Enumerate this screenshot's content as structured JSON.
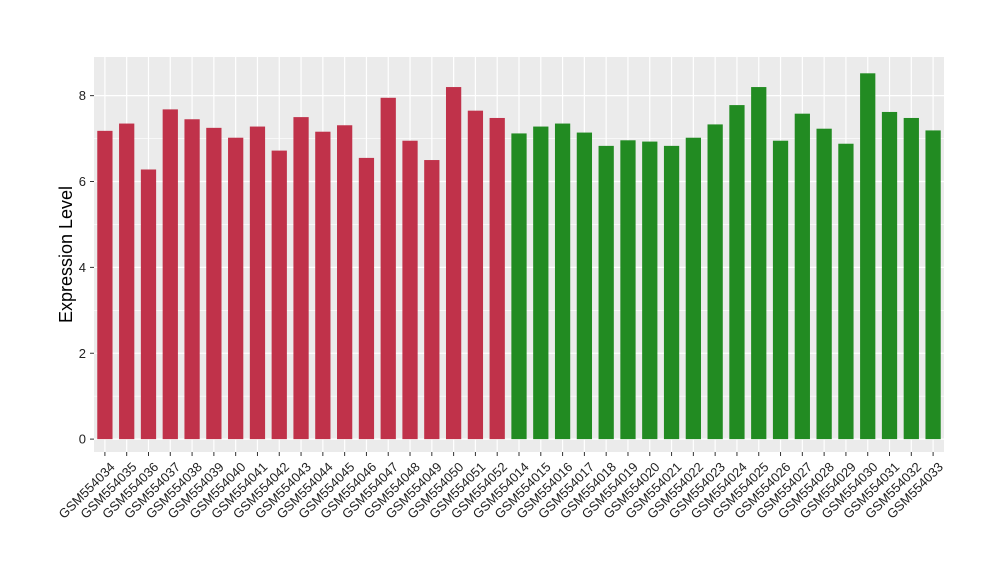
{
  "chart_data": {
    "type": "bar",
    "ylabel": "Expression Level",
    "xlabel": "",
    "ylim": [
      -0.3,
      8.9
    ],
    "yticks": [
      0,
      2,
      4,
      6,
      8
    ],
    "grid": true,
    "legend": "none",
    "colors": {
      "group_a": "#C0324A",
      "group_b": "#228B22",
      "panel_bg": "#EBEBEB",
      "grid": "#FFFFFF"
    },
    "categories": [
      "GSM554034",
      "GSM554035",
      "GSM554036",
      "GSM554037",
      "GSM554038",
      "GSM554039",
      "GSM554040",
      "GSM554041",
      "GSM554042",
      "GSM554043",
      "GSM554044",
      "GSM554045",
      "GSM554046",
      "GSM554047",
      "GSM554048",
      "GSM554049",
      "GSM554050",
      "GSM554051",
      "GSM554052",
      "GSM554014",
      "GSM554015",
      "GSM554016",
      "GSM554017",
      "GSM554018",
      "GSM554019",
      "GSM554020",
      "GSM554021",
      "GSM554022",
      "GSM554023",
      "GSM554024",
      "GSM554025",
      "GSM554026",
      "GSM554027",
      "GSM554028",
      "GSM554029",
      "GSM554030",
      "GSM554031",
      "GSM554032",
      "GSM554033"
    ],
    "values": [
      7.18,
      7.35,
      6.28,
      7.68,
      7.45,
      7.25,
      7.02,
      7.28,
      6.72,
      7.5,
      7.16,
      7.31,
      6.55,
      7.95,
      6.95,
      6.5,
      8.2,
      7.65,
      7.48,
      7.12,
      7.28,
      7.35,
      7.14,
      6.83,
      6.96,
      6.93,
      6.83,
      7.02,
      7.33,
      7.78,
      8.2,
      6.95,
      7.58,
      7.23,
      6.88,
      8.52,
      7.62,
      7.48,
      7.19
    ],
    "groups": [
      "a",
      "a",
      "a",
      "a",
      "a",
      "a",
      "a",
      "a",
      "a",
      "a",
      "a",
      "a",
      "a",
      "a",
      "a",
      "a",
      "a",
      "a",
      "a",
      "b",
      "b",
      "b",
      "b",
      "b",
      "b",
      "b",
      "b",
      "b",
      "b",
      "b",
      "b",
      "b",
      "b",
      "b",
      "b",
      "b",
      "b",
      "b",
      "b"
    ]
  }
}
